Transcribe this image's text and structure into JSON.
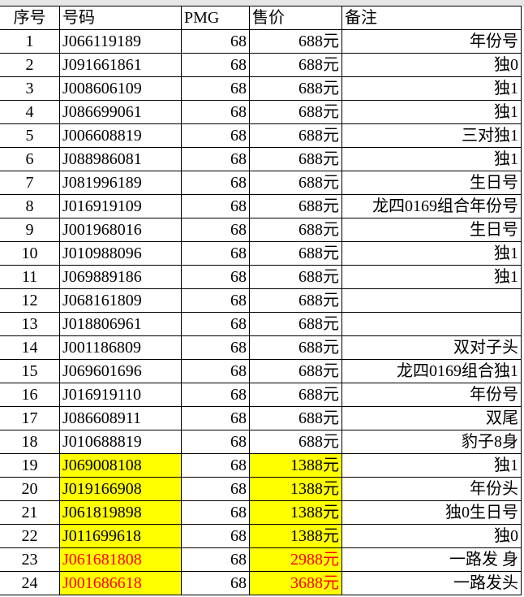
{
  "headers": [
    "序号",
    "号码",
    "PMG",
    "售价",
    "备注"
  ],
  "colors": {
    "highlight": "#ffff00",
    "red_text": "#ff0000"
  },
  "rows": [
    {
      "no": "1",
      "code": "J066119189",
      "pmg": "68",
      "price": "688元",
      "note": "年份号",
      "hl": false,
      "red": false
    },
    {
      "no": "2",
      "code": "J091661861",
      "pmg": "68",
      "price": "688元",
      "note": "独0",
      "hl": false,
      "red": false
    },
    {
      "no": "3",
      "code": "J008606109",
      "pmg": "68",
      "price": "688元",
      "note": "独1",
      "hl": false,
      "red": false
    },
    {
      "no": "4",
      "code": "J086699061",
      "pmg": "68",
      "price": "688元",
      "note": "独1",
      "hl": false,
      "red": false
    },
    {
      "no": "5",
      "code": "J006608819",
      "pmg": "68",
      "price": "688元",
      "note": "三对独1",
      "hl": false,
      "red": false
    },
    {
      "no": "6",
      "code": "J088986081",
      "pmg": "68",
      "price": "688元",
      "note": "独1",
      "hl": false,
      "red": false
    },
    {
      "no": "7",
      "code": "J081996189",
      "pmg": "68",
      "price": "688元",
      "note": "生日号",
      "hl": false,
      "red": false
    },
    {
      "no": "8",
      "code": "J016919109",
      "pmg": "68",
      "price": "688元",
      "note": "龙四0169组合年份号",
      "hl": false,
      "red": false
    },
    {
      "no": "9",
      "code": "J001968016",
      "pmg": "68",
      "price": "688元",
      "note": "生日号",
      "hl": false,
      "red": false
    },
    {
      "no": "10",
      "code": "J010988096",
      "pmg": "68",
      "price": "688元",
      "note": "独1",
      "hl": false,
      "red": false
    },
    {
      "no": "11",
      "code": "J069889186",
      "pmg": "68",
      "price": "688元",
      "note": "独1",
      "hl": false,
      "red": false
    },
    {
      "no": "12",
      "code": "J068161809",
      "pmg": "68",
      "price": "688元",
      "note": "",
      "hl": false,
      "red": false
    },
    {
      "no": "13",
      "code": "J018806961",
      "pmg": "68",
      "price": "688元",
      "note": "",
      "hl": false,
      "red": false
    },
    {
      "no": "14",
      "code": "J001186809",
      "pmg": "68",
      "price": "688元",
      "note": "双对子头",
      "hl": false,
      "red": false
    },
    {
      "no": "15",
      "code": "J069601696",
      "pmg": "68",
      "price": "688元",
      "note": "龙四0169组合独1",
      "hl": false,
      "red": false
    },
    {
      "no": "16",
      "code": "J016919110",
      "pmg": "68",
      "price": "688元",
      "note": "年份号",
      "hl": false,
      "red": false
    },
    {
      "no": "17",
      "code": "J086608911",
      "pmg": "68",
      "price": "688元",
      "note": "双尾",
      "hl": false,
      "red": false
    },
    {
      "no": "18",
      "code": "J010688819",
      "pmg": "68",
      "price": "688元",
      "note": "豹子8身",
      "hl": false,
      "red": false
    },
    {
      "no": "19",
      "code": "J069008108",
      "pmg": "68",
      "price": "1388元",
      "note": "独1",
      "hl": true,
      "red": false
    },
    {
      "no": "20",
      "code": "J019166908",
      "pmg": "68",
      "price": "1388元",
      "note": "年份头",
      "hl": true,
      "red": false
    },
    {
      "no": "21",
      "code": "J061819898",
      "pmg": "68",
      "price": "1388元",
      "note": "独0生日号",
      "hl": true,
      "red": false
    },
    {
      "no": "22",
      "code": "J011699618",
      "pmg": "68",
      "price": "1388元",
      "note": "独0",
      "hl": true,
      "red": false
    },
    {
      "no": "23",
      "code": "J061681808",
      "pmg": "68",
      "price": "2988元",
      "note": "一路发 身",
      "hl": true,
      "red": true
    },
    {
      "no": "24",
      "code": "J001686618",
      "pmg": "68",
      "price": "3688元",
      "note": "一路发头",
      "hl": true,
      "red": true
    }
  ]
}
